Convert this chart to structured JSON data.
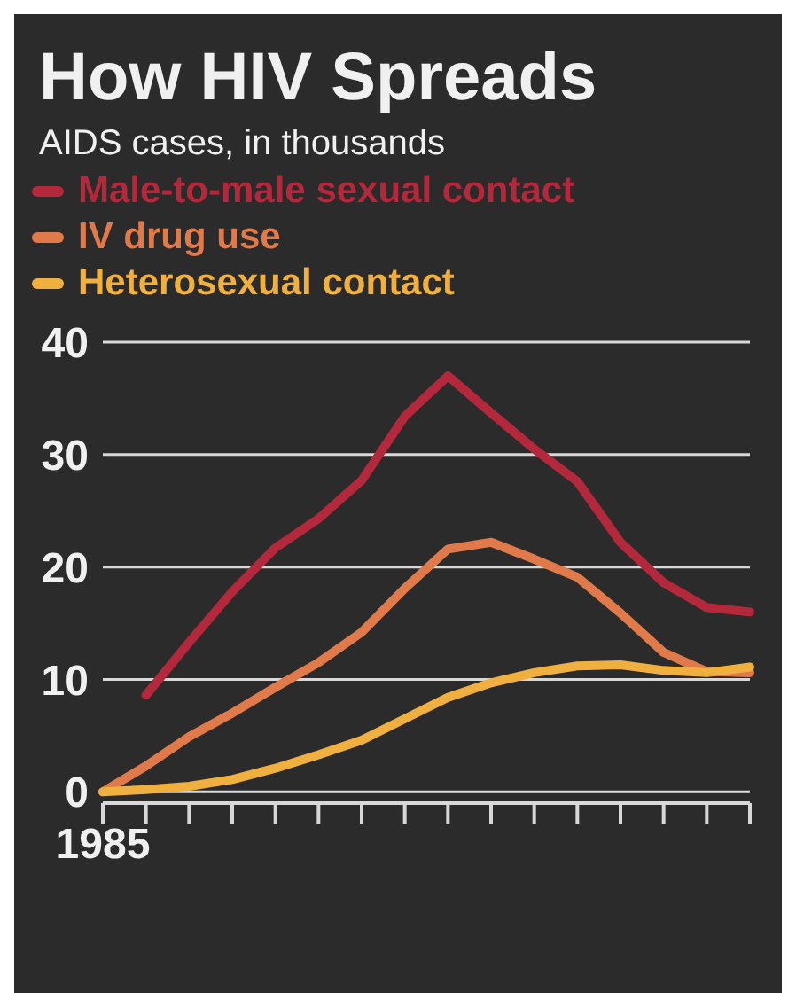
{
  "chart_data": {
    "type": "line",
    "title": "How HIV Spreads",
    "subtitle": "AIDS cases, in thousands",
    "legend": "top left",
    "grid": "y",
    "categories": [
      "1985",
      null,
      null,
      null,
      null,
      null,
      null,
      null,
      null,
      null,
      null,
      null,
      null,
      null,
      null,
      null
    ],
    "ylim": [
      -1,
      40
    ],
    "yticks": [
      0,
      10,
      20,
      30,
      40
    ],
    "series": [
      {
        "name": "Male-to-male sexual contact",
        "color": "#b3283a",
        "values": [
          null,
          8.6,
          13.3,
          17.8,
          21.7,
          24.3,
          27.7,
          33.4,
          37,
          33.7,
          30.5,
          27.6,
          22.2,
          18.6,
          16.4,
          16
        ]
      },
      {
        "name": "IV drug use",
        "color": "#e07a4a",
        "values": [
          0,
          2.3,
          4.9,
          7,
          9.3,
          11.5,
          14.2,
          18.1,
          21.6,
          22.2,
          20.7,
          19.1,
          15.9,
          12.4,
          10.7,
          10.6
        ]
      },
      {
        "name": "Heterosexual contact",
        "color": "#f0b040",
        "values": [
          0,
          0.2,
          0.5,
          1.1,
          2.1,
          3.3,
          4.6,
          6.5,
          8.4,
          9.7,
          10.6,
          11.2,
          11.3,
          10.8,
          10.6,
          11.1
        ]
      }
    ]
  }
}
